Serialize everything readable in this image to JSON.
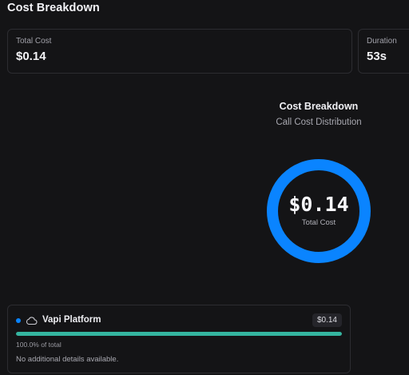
{
  "page": {
    "title": "Cost Breakdown"
  },
  "stats": {
    "total_cost": {
      "label": "Total Cost",
      "value": "$0.14"
    },
    "duration": {
      "label": "Duration",
      "value": "53s"
    }
  },
  "chart": {
    "title": "Cost Breakdown",
    "subtitle": "Call Cost Distribution",
    "center_value": "$0.14",
    "center_label": "Total Cost"
  },
  "chart_data": {
    "type": "pie",
    "title": "Cost Breakdown",
    "subtitle": "Call Cost Distribution",
    "categories": [
      "Vapi Platform"
    ],
    "values": [
      0.14
    ],
    "colors": [
      "#0a84ff"
    ]
  },
  "providers": [
    {
      "name": "Vapi Platform",
      "icon": "cloud-icon",
      "cost": "$0.14",
      "fraction": 1.0,
      "percent_text": "100.0% of total",
      "detail": "No additional details available.",
      "dot_color": "#0a84ff",
      "bar_color": "#35b5a0"
    }
  ],
  "colors": {
    "background": "#141416",
    "donut": "#0a84ff",
    "bar": "#35b5a0"
  }
}
